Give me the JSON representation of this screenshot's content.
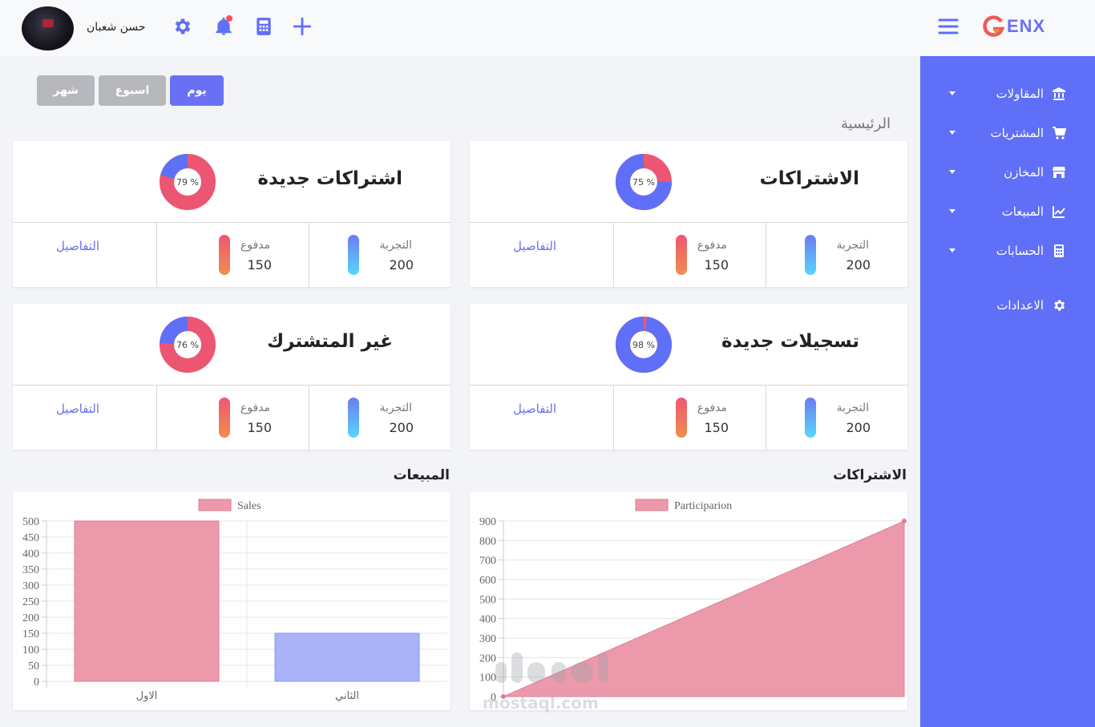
{
  "header": {
    "username": "حسن شعبان",
    "icons": [
      "settings-gear-icon",
      "bell-icon",
      "calculator-icon",
      "plus-icon"
    ],
    "logo_text": "ENX"
  },
  "sidebar": {
    "items": [
      {
        "label": "المقاولات",
        "icon": "bank-icon",
        "has_dropdown": true
      },
      {
        "label": "المشتريات",
        "icon": "cart-icon",
        "has_dropdown": true
      },
      {
        "label": "المخازن",
        "icon": "store-icon",
        "has_dropdown": true
      },
      {
        "label": "المبيعات",
        "icon": "chart-line-icon",
        "has_dropdown": true
      },
      {
        "label": "الحسابات",
        "icon": "calculator-icon",
        "has_dropdown": true
      },
      {
        "label": "الاعدادات",
        "icon": "gear-icon",
        "has_dropdown": false
      }
    ]
  },
  "period": {
    "day": "يوم",
    "week": "اسبوع",
    "month": "شهر"
  },
  "page_title": "الرئيسية",
  "cards": [
    {
      "title": "الاشتراكات",
      "percent_label": "75 %",
      "percent": 75,
      "trial_label": "التجربة",
      "trial": "200",
      "paid_label": "مدفوع",
      "paid": "150",
      "details": "التفاصيل"
    },
    {
      "title": "اشتراكات جديدة",
      "percent_label": "79 %",
      "percent": 79,
      "trial_label": "التجربة",
      "trial": "200",
      "paid_label": "مدفوع",
      "paid": "150",
      "details": "التفاصيل"
    },
    {
      "title": "تسجيلات جديدة",
      "percent_label": "98 %",
      "percent": 98,
      "trial_label": "التجربة",
      "trial": "200",
      "paid_label": "مدفوع",
      "paid": "150",
      "details": "التفاصيل"
    },
    {
      "title": "غير المتشترك",
      "percent_label": "76 %",
      "percent": 76,
      "trial_label": "التجربة",
      "trial": "200",
      "paid_label": "مدفوع",
      "paid": "150",
      "details": "التفاصيل"
    }
  ],
  "colors": {
    "accent": "#5f6ff7",
    "donut_main": "#5f6ff7",
    "donut_rest": "#ec5673",
    "bar_red": "#ec9aab",
    "bar_blue": "#aab2f8",
    "area": "#ec9aab"
  },
  "charts": {
    "subscriptions_title": "الاشتراكات",
    "sales_title": "المبيعات"
  },
  "chart_data": [
    {
      "type": "area",
      "title": "الاشتراكات",
      "series": [
        {
          "name": "Participarion",
          "values": [
            0,
            900
          ]
        }
      ],
      "x": [
        0,
        1
      ],
      "ylim": [
        0,
        900
      ],
      "yticks": [
        0,
        100,
        200,
        300,
        400,
        500,
        600,
        700,
        800,
        900
      ],
      "legend": "top",
      "grid": true
    },
    {
      "type": "bar",
      "title": "المبيعات",
      "categories": [
        "الاول",
        "الثاني"
      ],
      "series": [
        {
          "name": "Sales",
          "values": [
            500,
            150
          ]
        }
      ],
      "ylim": [
        0,
        500
      ],
      "yticks": [
        0,
        50,
        100,
        150,
        200,
        250,
        300,
        350,
        400,
        450,
        500
      ],
      "legend": "top",
      "grid": true
    }
  ],
  "watermark": {
    "text": "mostaql.com"
  }
}
